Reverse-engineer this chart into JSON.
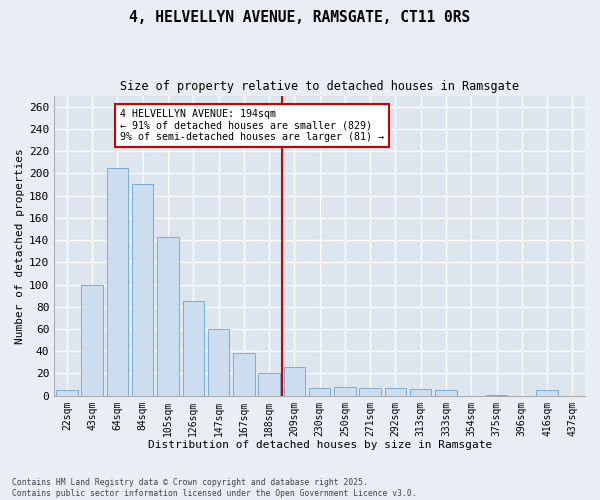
{
  "title": "4, HELVELLYN AVENUE, RAMSGATE, CT11 0RS",
  "subtitle": "Size of property relative to detached houses in Ramsgate",
  "xlabel": "Distribution of detached houses by size in Ramsgate",
  "ylabel": "Number of detached properties",
  "footer1": "Contains HM Land Registry data © Crown copyright and database right 2025.",
  "footer2": "Contains public sector information licensed under the Open Government Licence v3.0.",
  "bar_color": "#ccddef",
  "bar_edge_color": "#7aadd4",
  "categories": [
    "22sqm",
    "43sqm",
    "64sqm",
    "84sqm",
    "105sqm",
    "126sqm",
    "147sqm",
    "167sqm",
    "188sqm",
    "209sqm",
    "230sqm",
    "250sqm",
    "271sqm",
    "292sqm",
    "313sqm",
    "333sqm",
    "354sqm",
    "375sqm",
    "396sqm",
    "416sqm",
    "437sqm"
  ],
  "values": [
    5,
    100,
    205,
    190,
    143,
    85,
    60,
    38,
    20,
    26,
    7,
    8,
    7,
    7,
    6,
    5,
    0,
    1,
    0,
    5,
    0
  ],
  "property_line_x": 8.5,
  "annotation_title": "4 HELVELLYN AVENUE: 194sqm",
  "annotation_line1": "← 91% of detached houses are smaller (829)",
  "annotation_line2": "9% of semi-detached houses are larger (81) →",
  "vline_color": "#cc0000",
  "annotation_box_color": "#cc0000",
  "bg_color": "#e8eef4",
  "plot_bg_color": "#dde6ef",
  "ylim": [
    0,
    270
  ],
  "yticks": [
    0,
    20,
    40,
    60,
    80,
    100,
    120,
    140,
    160,
    180,
    200,
    220,
    240,
    260
  ]
}
